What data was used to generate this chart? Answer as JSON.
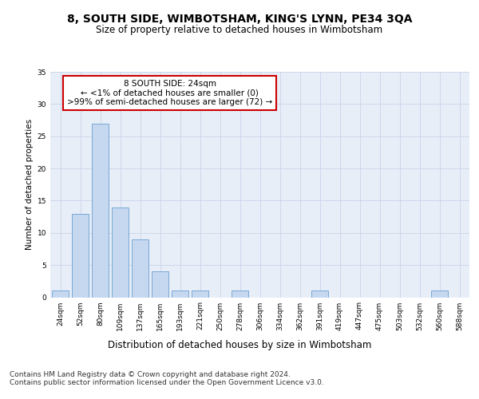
{
  "title": "8, SOUTH SIDE, WIMBOTSHAM, KING'S LYNN, PE34 3QA",
  "subtitle": "Size of property relative to detached houses in Wimbotsham",
  "xlabel": "Distribution of detached houses by size in Wimbotsham",
  "ylabel": "Number of detached properties",
  "categories": [
    "24sqm",
    "52sqm",
    "80sqm",
    "109sqm",
    "137sqm",
    "165sqm",
    "193sqm",
    "221sqm",
    "250sqm",
    "278sqm",
    "306sqm",
    "334sqm",
    "362sqm",
    "391sqm",
    "419sqm",
    "447sqm",
    "475sqm",
    "503sqm",
    "532sqm",
    "560sqm",
    "588sqm"
  ],
  "values": [
    1,
    13,
    27,
    14,
    9,
    4,
    1,
    1,
    0,
    1,
    0,
    0,
    0,
    1,
    0,
    0,
    0,
    0,
    0,
    1,
    0
  ],
  "bar_color": "#c5d8f0",
  "bar_edge_color": "#6a9fd0",
  "annotation_text": "8 SOUTH SIDE: 24sqm\n← <1% of detached houses are smaller (0)\n>99% of semi-detached houses are larger (72) →",
  "annotation_box_edge_color": "#cc0000",
  "annotation_box_face_color": "#ffffff",
  "ylim": [
    0,
    35
  ],
  "yticks": [
    0,
    5,
    10,
    15,
    20,
    25,
    30,
    35
  ],
  "grid_color": "#c8d4e8",
  "background_color": "#e8eef8",
  "footer_line1": "Contains HM Land Registry data © Crown copyright and database right 2024.",
  "footer_line2": "Contains public sector information licensed under the Open Government Licence v3.0.",
  "title_fontsize": 10,
  "subtitle_fontsize": 8.5,
  "xlabel_fontsize": 8.5,
  "ylabel_fontsize": 7.5,
  "tick_fontsize": 6.5,
  "annotation_fontsize": 7.5,
  "footer_fontsize": 6.5
}
